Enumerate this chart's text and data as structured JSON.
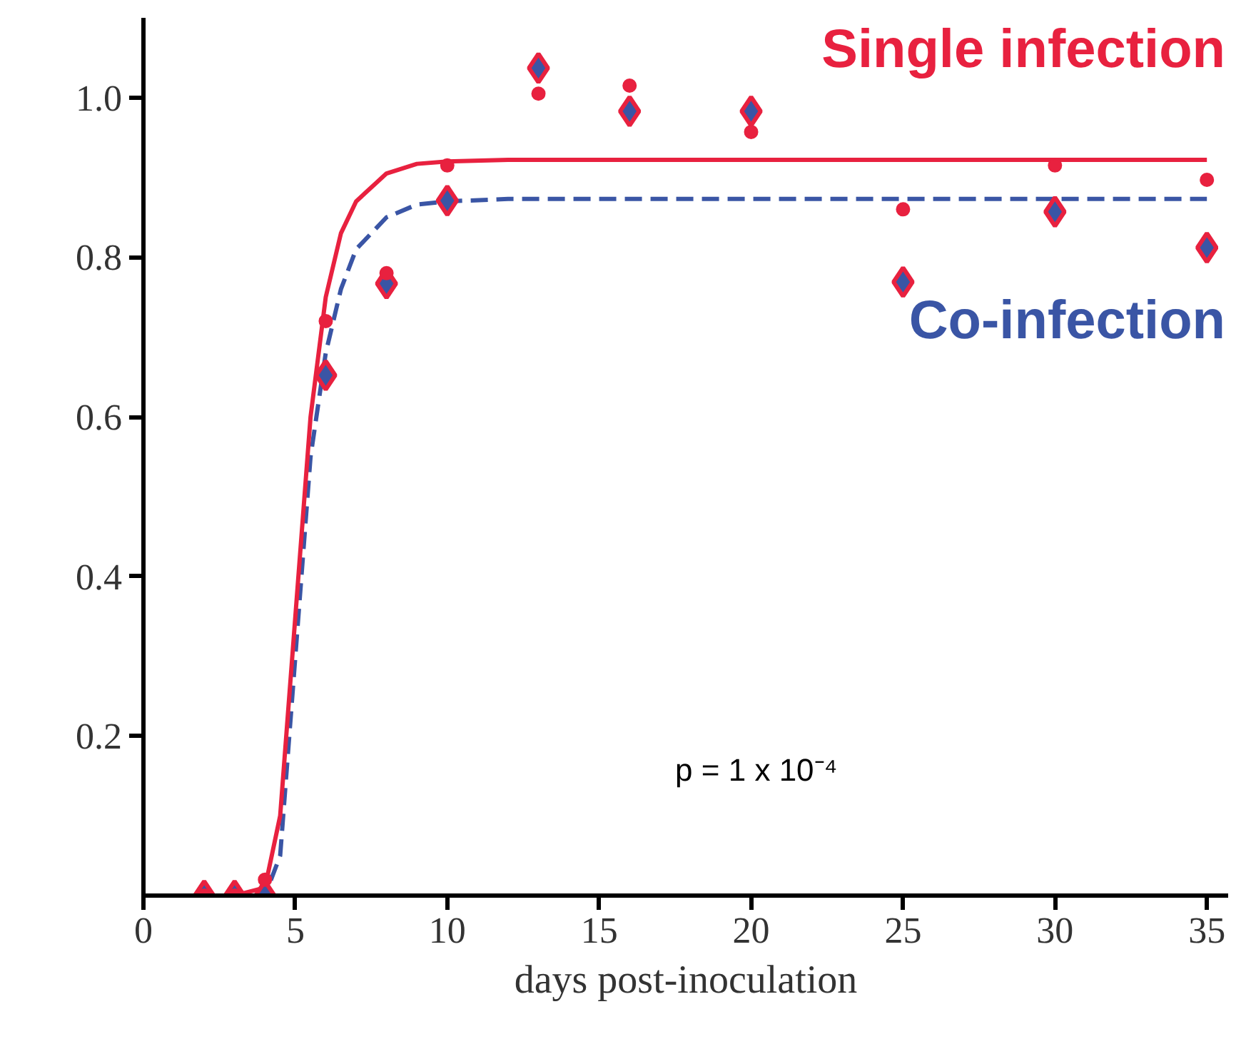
{
  "chart_data": {
    "type": "scatter",
    "xlabel": "days post-inoculation",
    "x": [
      2,
      3,
      4,
      6,
      8,
      10,
      13,
      16,
      20,
      25,
      30,
      35
    ],
    "series": [
      {
        "color": "#e8213f",
        "marker": "circle",
        "values": [
          null,
          null,
          0.02,
          0.72,
          0.78,
          0.915,
          1.005,
          1.015,
          0.957,
          0.86,
          0.915,
          0.897
        ]
      },
      {
        "color": "#3a55a5",
        "marker": "diamond",
        "values": [
          0,
          0,
          0,
          0.652,
          0.767,
          0.871,
          1.037,
          0.983,
          0.983,
          0.769,
          0.857,
          0.812
        ]
      },
      {
        "type": "line",
        "name": "Single infection",
        "color": "#e8213f",
        "line_style": "solid",
        "x": [
          2,
          3,
          4,
          4.5,
          5,
          5.5,
          6,
          6.5,
          7,
          8,
          9,
          10,
          12,
          35
        ],
        "values": [
          0,
          0,
          0.01,
          0.1,
          0.35,
          0.6,
          0.75,
          0.83,
          0.87,
          0.905,
          0.917,
          0.92,
          0.922,
          0.922
        ]
      },
      {
        "type": "line",
        "name": "Co-infection",
        "color": "#3a55a5",
        "line_style": "dashed",
        "x": [
          2,
          3,
          4,
          4.5,
          5,
          5.5,
          6,
          6.5,
          7,
          8,
          9,
          10,
          12,
          35
        ],
        "values": [
          0,
          0,
          0,
          0.05,
          0.3,
          0.55,
          0.68,
          0.76,
          0.81,
          0.85,
          0.866,
          0.87,
          0.873,
          0.873
        ]
      }
    ],
    "annotations": [
      "p = 1 x 10⁻⁴"
    ],
    "xlim": [
      0,
      35.7
    ],
    "ylim": [
      0,
      1.1
    ],
    "xticks": [
      0,
      5,
      10,
      15,
      20,
      25,
      30,
      35
    ],
    "yticks": [
      0.2,
      0.4,
      0.6,
      0.8,
      {
        "value": 1,
        "label": "1.0"
      }
    ],
    "grid": false
  }
}
